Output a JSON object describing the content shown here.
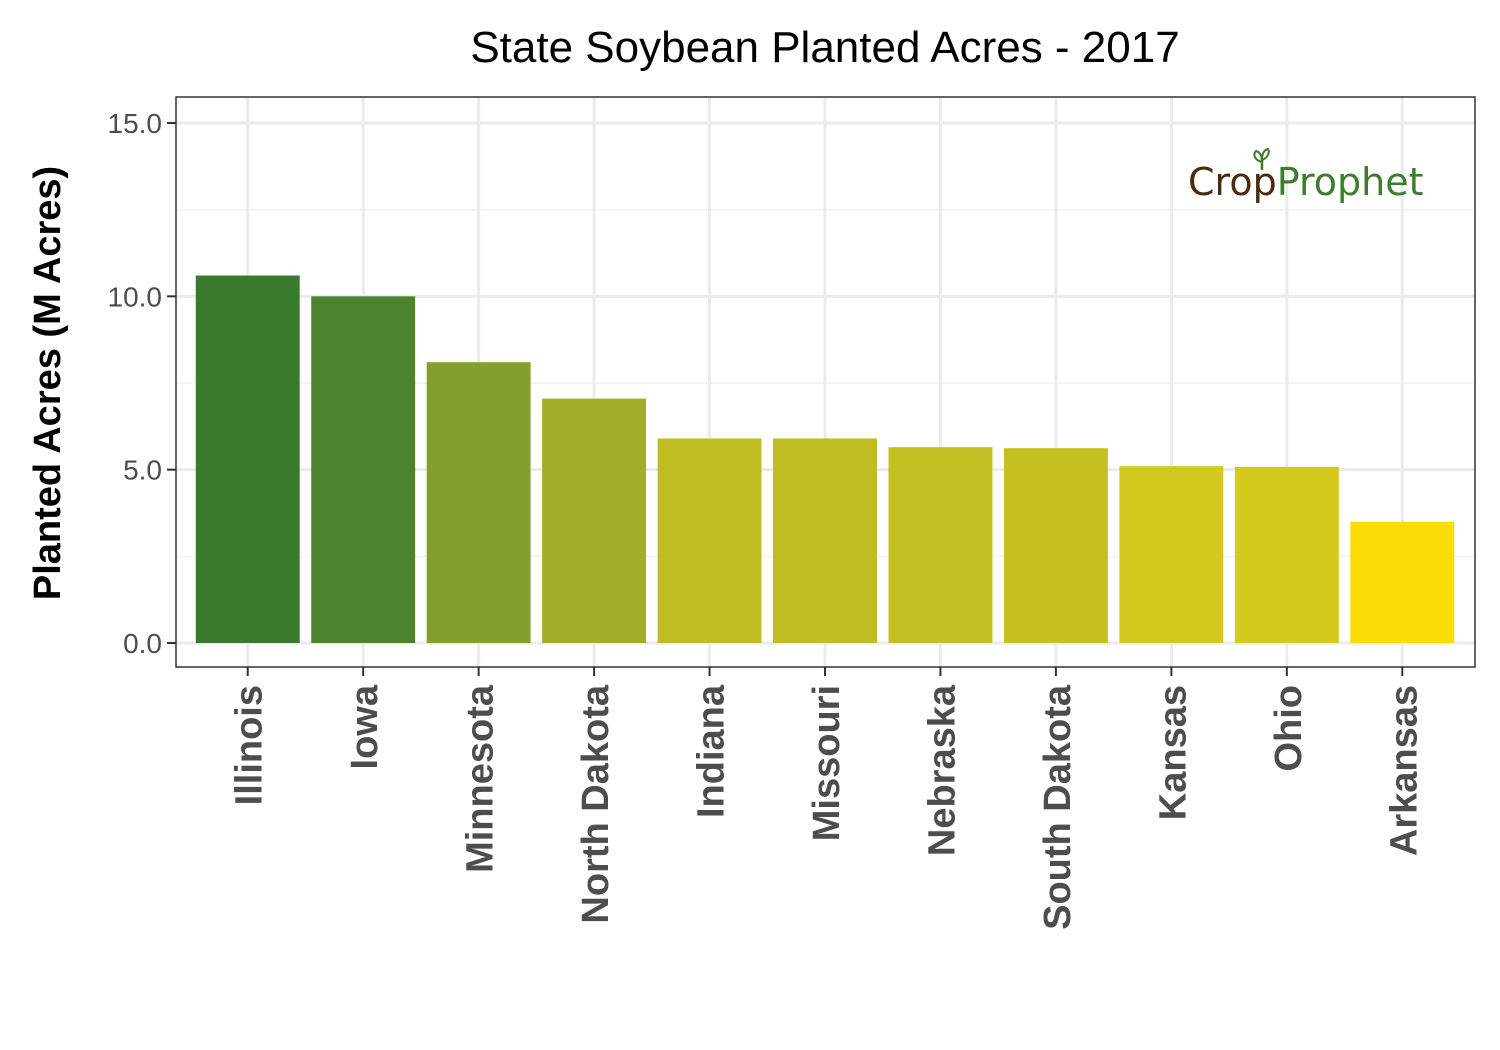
{
  "chart_data": {
    "type": "bar",
    "title": "State Soybean Planted Acres - 2017",
    "xlabel": "",
    "ylabel": "Planted Acres (M Acres)",
    "ylim": [
      0,
      15.8
    ],
    "yticks": [
      0,
      5,
      10,
      15
    ],
    "ytick_labels": [
      "0.0",
      "5.0",
      "10.0",
      "15.0"
    ],
    "grid": true,
    "legend": "none",
    "categories": [
      "Illinois",
      "Iowa",
      "Minnesota",
      "North Dakota",
      "Indiana",
      "Missouri",
      "Nebraska",
      "South Dakota",
      "Kansas",
      "Ohio",
      "Arkansas"
    ],
    "values": [
      10.6,
      10.0,
      8.1,
      7.05,
      5.9,
      5.9,
      5.65,
      5.62,
      5.1,
      5.08,
      3.5
    ],
    "colors": [
      "#387b2c",
      "#4b842d",
      "#849f2c",
      "#a2ad28",
      "#bfbd22",
      "#bfbd22",
      "#c5c021",
      "#c6c121",
      "#d3c81d",
      "#d4c91d",
      "#fbdd05"
    ]
  },
  "logo": {
    "text_crop_prefix": "Cr",
    "text_crop_o": "o",
    "text_crop_suffix": "p",
    "text_prophet": "Prophet",
    "color_crop": "#4a2c0c",
    "color_prophet": "#3e7d2f"
  }
}
